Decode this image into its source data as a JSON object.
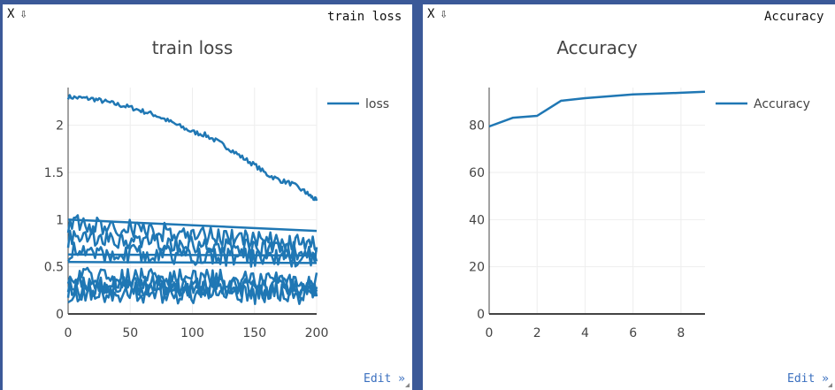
{
  "panes": [
    {
      "close_label": "X",
      "pin_label": "⇩",
      "tag_label": "train loss",
      "edit_label": "Edit »",
      "chart_data": {
        "type": "line",
        "title": "train loss",
        "xlabel": "",
        "ylabel": "",
        "xlim": [
          0,
          200
        ],
        "ylim": [
          0,
          2.4
        ],
        "xticks": [
          0,
          50,
          100,
          150,
          200
        ],
        "yticks": [
          0,
          0.5,
          1,
          1.5,
          2
        ],
        "ytick_labels": [
          "0",
          "0.5",
          "1",
          "1.5",
          "2"
        ],
        "legend": [
          "loss"
        ],
        "legend_position": "top-right",
        "color": "#1f77b4",
        "series": [
          {
            "name": "loss",
            "x": [
              0,
              10,
              20,
              30,
              40,
              50,
              60,
              70,
              80,
              90,
              100,
              110,
              120,
              130,
              140,
              150,
              160,
              170,
              180,
              190,
              195,
              200
            ],
            "y": [
              2.3,
              2.29,
              2.28,
              2.25,
              2.22,
              2.19,
              2.15,
              2.11,
              2.05,
              1.99,
              1.93,
              1.9,
              1.83,
              1.75,
              1.66,
              1.58,
              1.48,
              1.42,
              1.38,
              1.3,
              1.25,
              1.2
            ]
          },
          {
            "x": [
              0,
              200
            ],
            "y": [
              1.0,
              0.88
            ]
          },
          {
            "x": [
              0,
              200
            ],
            "y": [
              0.63,
              0.62
            ]
          },
          {
            "x": [
              0,
              200
            ],
            "y": [
              0.55,
              0.54
            ]
          },
          {
            "x": [
              0,
              200
            ],
            "y": [
              0.96,
              0.72
            ]
          },
          {
            "x": [
              0,
              200
            ],
            "y": [
              0.8,
              0.65
            ]
          },
          {
            "x": [
              0,
              200
            ],
            "y": [
              0.66,
              0.58
            ]
          },
          {
            "x": [
              0,
              200
            ],
            "y": [
              0.42,
              0.34
            ]
          },
          {
            "x": [
              0,
              200
            ],
            "y": [
              0.33,
              0.27
            ]
          },
          {
            "x": [
              0,
              200
            ],
            "y": [
              0.27,
              0.25
            ]
          },
          {
            "x": [
              0,
              200
            ],
            "y": [
              0.22,
              0.2
            ]
          }
        ]
      }
    },
    {
      "close_label": "X",
      "pin_label": "⇩",
      "tag_label": "Accuracy",
      "edit_label": "Edit »",
      "chart_data": {
        "type": "line",
        "title": "Accuracy",
        "xlabel": "",
        "ylabel": "",
        "xlim": [
          0,
          9
        ],
        "ylim": [
          0,
          96
        ],
        "xticks": [
          0,
          2,
          4,
          6,
          8
        ],
        "yticks": [
          0,
          20,
          40,
          60,
          80
        ],
        "ytick_labels": [
          "0",
          "20",
          "40",
          "60",
          "80"
        ],
        "legend": [
          "Accuracy"
        ],
        "legend_position": "top-right",
        "color": "#1f77b4",
        "series": [
          {
            "name": "Accuracy",
            "x": [
              0,
              1,
              2,
              3,
              4,
              5,
              6,
              7,
              8,
              9
            ],
            "y": [
              79.5,
              83.2,
              84.0,
              90.4,
              91.5,
              92.3,
              93.1,
              93.4,
              93.8,
              94.2
            ]
          }
        ]
      }
    }
  ]
}
